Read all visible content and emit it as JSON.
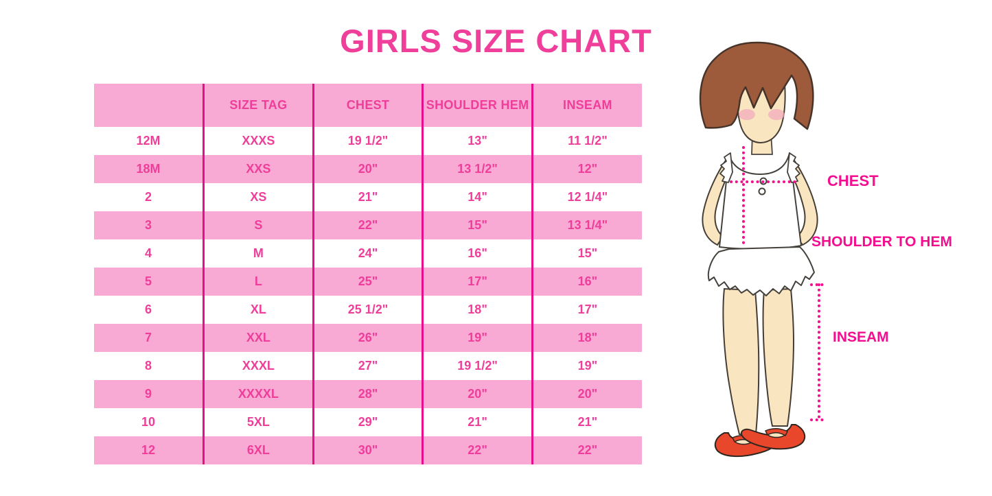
{
  "title": "GIRLS SIZE CHART",
  "chart_data": {
    "type": "table",
    "title": "GIRLS SIZE CHART",
    "columns": [
      "",
      "SIZE TAG",
      "CHEST",
      "SHOULDER HEM",
      "INSEAM"
    ],
    "rows": [
      [
        "12M",
        "XXXS",
        "19 1/2\"",
        "13\"",
        "11 1/2\""
      ],
      [
        "18M",
        "XXS",
        "20\"",
        "13 1/2\"",
        "12\""
      ],
      [
        "2",
        "XS",
        "21\"",
        "14\"",
        "12 1/4\""
      ],
      [
        "3",
        "S",
        "22\"",
        "15\"",
        "13 1/4\""
      ],
      [
        "4",
        "M",
        "24\"",
        "16\"",
        "15\""
      ],
      [
        "5",
        "L",
        "25\"",
        "17\"",
        "16\""
      ],
      [
        "6",
        "XL",
        "25 1/2\"",
        "18\"",
        "17\""
      ],
      [
        "7",
        "XXL",
        "26\"",
        "19\"",
        "18\""
      ],
      [
        "8",
        "XXXL",
        "27\"",
        "19 1/2\"",
        "19\""
      ],
      [
        "9",
        "XXXXL",
        "28\"",
        "20\"",
        "20\""
      ],
      [
        "10",
        "5XL",
        "29\"",
        "21\"",
        "21\""
      ],
      [
        "12",
        "6XL",
        "30\"",
        "22\"",
        "22\""
      ]
    ],
    "layout": {
      "header_bg": "#F8A9D4",
      "row_stripe_colors": [
        "#FFFFFF",
        "#F8A9D4"
      ],
      "divider_color": "#E60E8A",
      "text_color": "#EE3E9A",
      "grid": "vertical-dividers-only"
    }
  },
  "figure": {
    "labels": {
      "chest": "CHEST",
      "shoulder_to_hem": "SHOULDER TO HEM",
      "inseam": "INSEAM"
    }
  },
  "colors": {
    "title_pink": "#F03F9B",
    "row_pink": "#F8A9D4",
    "divider_magenta": "#E60E8A",
    "cell_text_pink": "#EE3E9A",
    "label_magenta": "#F30D8F",
    "dotted_line_pink": "#F2108D",
    "hair_brown": "#9E5B3B",
    "skin_tone": "#FAE5C1",
    "shoe_red": "#E8472B"
  }
}
